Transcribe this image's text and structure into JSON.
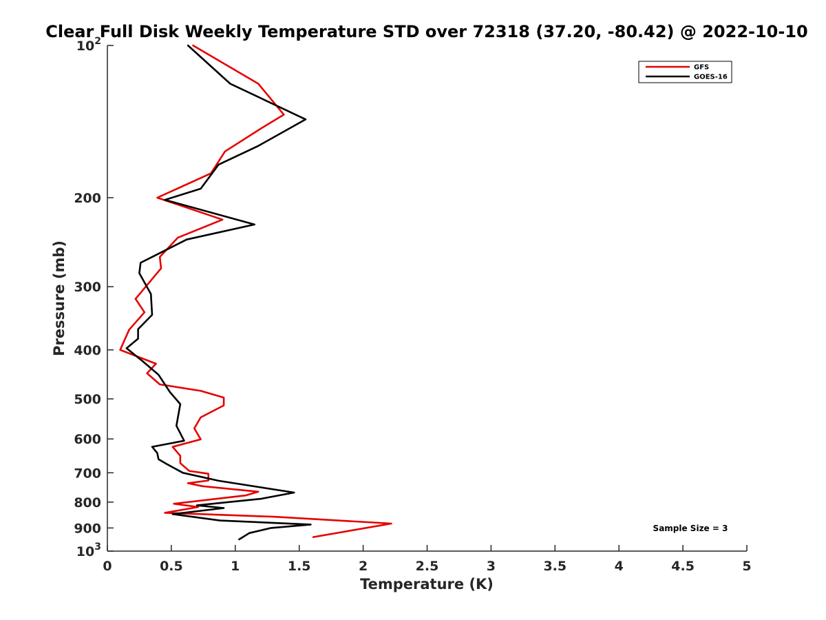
{
  "chart_data": {
    "type": "line",
    "title": "Clear Full Disk Weekly Temperature STD over 72318 (37.20, -80.42) @ 2022-10-10",
    "xlabel": "Temperature (K)",
    "ylabel": "Pressure (mb)",
    "xlim": [
      0,
      5
    ],
    "ylim": [
      100,
      1000
    ],
    "y_scale": "log",
    "y_reversed": true,
    "grid": false,
    "legend_position": "top-right",
    "x_ticks": [
      "0",
      "0.5",
      "1",
      "1.5",
      "2",
      "2.5",
      "3",
      "3.5",
      "4",
      "4.5",
      "5"
    ],
    "y_ticks": [
      {
        "value": 100,
        "base": "10",
        "exp": "2"
      },
      {
        "value": 200,
        "label": "200"
      },
      {
        "value": 300,
        "label": "300"
      },
      {
        "value": 400,
        "label": "400"
      },
      {
        "value": 500,
        "label": "500"
      },
      {
        "value": 600,
        "label": "600"
      },
      {
        "value": 700,
        "label": "700"
      },
      {
        "value": 800,
        "label": "800"
      },
      {
        "value": 900,
        "label": "900"
      },
      {
        "value": 1000,
        "base": "10",
        "exp": "3"
      }
    ],
    "annotation": "Sample Size = 3",
    "series": [
      {
        "name": "GFS",
        "color": "#e60000",
        "points": [
          [
            0.67,
            100
          ],
          [
            1.18,
            119
          ],
          [
            1.38,
            137
          ],
          [
            1.2,
            146
          ],
          [
            0.92,
            162
          ],
          [
            0.81,
            179
          ],
          [
            0.39,
            200
          ],
          [
            0.9,
            221
          ],
          [
            0.55,
            240
          ],
          [
            0.41,
            262
          ],
          [
            0.42,
            276
          ],
          [
            0.22,
            317
          ],
          [
            0.29,
            337
          ],
          [
            0.17,
            365
          ],
          [
            0.1,
            400
          ],
          [
            0.38,
            426
          ],
          [
            0.31,
            445
          ],
          [
            0.41,
            468
          ],
          [
            0.73,
            482
          ],
          [
            0.91,
            497
          ],
          [
            0.91,
            515
          ],
          [
            0.73,
            544
          ],
          [
            0.68,
            572
          ],
          [
            0.73,
            601
          ],
          [
            0.51,
            622
          ],
          [
            0.57,
            648
          ],
          [
            0.57,
            670
          ],
          [
            0.64,
            694
          ],
          [
            0.79,
            703
          ],
          [
            0.79,
            725
          ],
          [
            0.63,
            734
          ],
          [
            0.74,
            744
          ],
          [
            1.18,
            763
          ],
          [
            1.08,
            776
          ],
          [
            0.52,
            806
          ],
          [
            0.71,
            818
          ],
          [
            0.45,
            840
          ],
          [
            1.3,
            855
          ],
          [
            2.22,
            882
          ],
          [
            1.61,
            938
          ]
        ]
      },
      {
        "name": "GOES-16",
        "color": "#000000",
        "points": [
          [
            0.63,
            100
          ],
          [
            0.96,
            119
          ],
          [
            1.55,
            140
          ],
          [
            1.18,
            158
          ],
          [
            0.87,
            172
          ],
          [
            0.73,
            192
          ],
          [
            0.45,
            202
          ],
          [
            1.15,
            226
          ],
          [
            0.62,
            242
          ],
          [
            0.26,
            269
          ],
          [
            0.25,
            282
          ],
          [
            0.34,
            310
          ],
          [
            0.35,
            341
          ],
          [
            0.24,
            364
          ],
          [
            0.24,
            380
          ],
          [
            0.15,
            397
          ],
          [
            0.28,
            422
          ],
          [
            0.4,
            448
          ],
          [
            0.49,
            485
          ],
          [
            0.57,
            512
          ],
          [
            0.54,
            565
          ],
          [
            0.6,
            605
          ],
          [
            0.35,
            622
          ],
          [
            0.39,
            640
          ],
          [
            0.4,
            658
          ],
          [
            0.47,
            674
          ],
          [
            0.59,
            700
          ],
          [
            0.87,
            726
          ],
          [
            1.46,
            766
          ],
          [
            1.2,
            788
          ],
          [
            0.7,
            812
          ],
          [
            0.91,
            822
          ],
          [
            0.51,
            845
          ],
          [
            0.88,
            870
          ],
          [
            1.59,
            886
          ],
          [
            1.28,
            900
          ],
          [
            1.11,
            921
          ],
          [
            1.03,
            948
          ]
        ]
      }
    ]
  }
}
